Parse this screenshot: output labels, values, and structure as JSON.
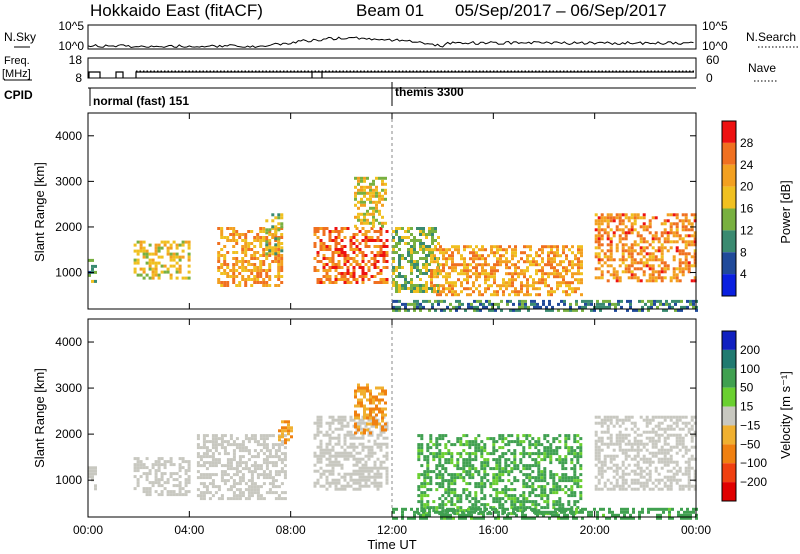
{
  "header": {
    "title": "Hokkaido East (fitACF)",
    "beam": "Beam 01",
    "date_range": "05/Sep/2017 – 06/Sep/2017"
  },
  "aux": {
    "nsky_label": "N.Sky",
    "nsky_ticks": [
      "10^5",
      "10^0"
    ],
    "nsearch_label": "N.Search",
    "nsearch_ticks": [
      "10^5",
      "10^0"
    ],
    "freq_label": "Freq.",
    "freq_unit": "[MHz]",
    "freq_ticks": [
      "18",
      "8"
    ],
    "nave_label": "Nave",
    "nave_ticks": [
      "60",
      "0"
    ],
    "cpid_label": "CPID",
    "cpid_modes": [
      {
        "name": "normal (fast) 151",
        "start_hour": 0
      },
      {
        "name": "themis 3300",
        "start_hour": 12
      }
    ]
  },
  "panels": {
    "ylabel": "Slant Range [km]",
    "yticks": [
      "4000",
      "3000",
      "2000",
      "1000"
    ],
    "xticks": [
      "00:00",
      "04:00",
      "08:00",
      "12:00",
      "16:00",
      "20:00",
      "00:00"
    ],
    "xlabel": "Time UT"
  },
  "colorbars": {
    "power": {
      "label": "Power [dB]",
      "ticks": [
        "28",
        "24",
        "20",
        "16",
        "12",
        "8",
        "4"
      ],
      "colors": [
        "#ee1111",
        "#f07020",
        "#f3a020",
        "#f0c020",
        "#78b040",
        "#3a8a70",
        "#204a9a",
        "#0a20e0"
      ]
    },
    "velocity": {
      "label": "Velocity [m s⁻¹]",
      "ticks": [
        "200",
        "100",
        "50",
        "15",
        "−15",
        "−50",
        "−100",
        "−200"
      ],
      "colors": [
        "#1020c0",
        "#207a70",
        "#40a050",
        "#6ad030",
        "#c8c8c0",
        "#f0b030",
        "#f08010",
        "#f04010",
        "#e00000"
      ]
    }
  },
  "chart_data": [
    {
      "type": "heatmap",
      "title": "Power",
      "x_range_hours": [
        0,
        24
      ],
      "y_range_km": [
        200,
        4500
      ],
      "colorbar_label": "Power [dB]",
      "colorbar_range": [
        0,
        32
      ],
      "regions": [
        {
          "t0": 0.0,
          "t1": 0.3,
          "r0": 800,
          "r1": 1300,
          "value": 12
        },
        {
          "t0": 1.8,
          "t1": 4.0,
          "r0": 900,
          "r1": 1700,
          "value": 18
        },
        {
          "t0": 5.1,
          "t1": 7.6,
          "r0": 700,
          "r1": 2000,
          "value": 22
        },
        {
          "t0": 7.0,
          "t1": 7.6,
          "r0": 1400,
          "r1": 2300,
          "value": 15
        },
        {
          "t0": 8.9,
          "t1": 11.8,
          "r0": 800,
          "r1": 2000,
          "value": 26
        },
        {
          "t0": 10.5,
          "t1": 11.8,
          "r0": 2000,
          "r1": 3100,
          "value": 18
        },
        {
          "t0": 12.0,
          "t1": 13.8,
          "r0": 600,
          "r1": 2000,
          "value": 14
        },
        {
          "t0": 13.5,
          "t1": 19.5,
          "r0": 500,
          "r1": 1600,
          "value": 22
        },
        {
          "t0": 20.0,
          "t1": 24.0,
          "r0": 800,
          "r1": 2300,
          "value": 24
        },
        {
          "t0": 12.0,
          "t1": 24.0,
          "r0": 200,
          "r1": 400,
          "value": 10
        }
      ]
    },
    {
      "type": "heatmap",
      "title": "Velocity",
      "x_range_hours": [
        0,
        24
      ],
      "y_range_km": [
        200,
        4500
      ],
      "colorbar_label": "Velocity [m s⁻¹]",
      "colorbar_range": [
        -250,
        250
      ],
      "regions": [
        {
          "t0": 0.0,
          "t1": 0.3,
          "r0": 800,
          "r1": 1300,
          "value": 0
        },
        {
          "t0": 1.8,
          "t1": 4.0,
          "r0": 700,
          "r1": 1500,
          "value": 0
        },
        {
          "t0": 4.3,
          "t1": 7.8,
          "r0": 600,
          "r1": 2000,
          "value": 0
        },
        {
          "t0": 7.5,
          "t1": 8.0,
          "r0": 1800,
          "r1": 2300,
          "value": -30
        },
        {
          "t0": 8.9,
          "t1": 11.8,
          "r0": 800,
          "r1": 2400,
          "value": 0
        },
        {
          "t0": 10.5,
          "t1": 11.8,
          "r0": 2000,
          "r1": 3100,
          "value": -30
        },
        {
          "t0": 13.0,
          "t1": 19.5,
          "r0": 300,
          "r1": 2000,
          "value": 40
        },
        {
          "t0": 20.0,
          "t1": 24.0,
          "r0": 800,
          "r1": 2400,
          "value": 0
        },
        {
          "t0": 12.0,
          "t1": 24.0,
          "r0": 200,
          "r1": 400,
          "value": 45
        }
      ]
    }
  ]
}
